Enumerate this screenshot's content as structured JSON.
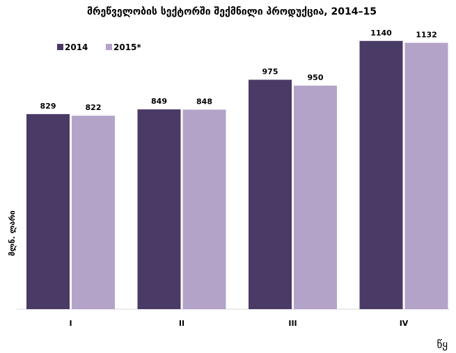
{
  "chart_data": {
    "type": "bar",
    "title": "მრეწველობის სექტორში შექმნილი პროდუქცია, 2014–15",
    "categories": [
      "I",
      "II",
      "III",
      "IV"
    ],
    "series": [
      {
        "name": "2014",
        "values": [
          829,
          849,
          975,
          1140
        ]
      },
      {
        "name": "2015*",
        "values": [
          822,
          848,
          950,
          1132
        ]
      }
    ],
    "xlabel": "",
    "ylabel": "მლნ. ლარი",
    "ylim": [
      0,
      1160
    ],
    "grid": false,
    "legend_position": "top-left",
    "colors": {
      "2014": "#4a3a66",
      "2015*": "#b3a3c9"
    }
  },
  "corner_mark": "წყ"
}
